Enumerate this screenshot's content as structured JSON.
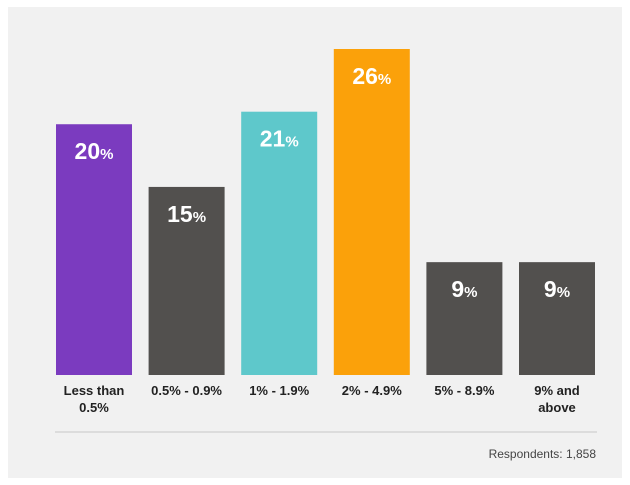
{
  "chart_data": {
    "type": "bar",
    "categories": [
      "Less than 0.5%",
      "0.5% - 0.9%",
      "1% - 1.9%",
      "2% - 4.9%",
      "5% - 8.9%",
      "9% and above"
    ],
    "category_lines": [
      [
        "Less than",
        "0.5%"
      ],
      [
        "0.5% - 0.9%"
      ],
      [
        "1% - 1.9%"
      ],
      [
        "2% - 4.9%"
      ],
      [
        "5% - 8.9%"
      ],
      [
        "9% and",
        "above"
      ]
    ],
    "values": [
      20,
      15,
      21,
      26,
      9,
      9
    ],
    "value_labels": [
      "20",
      "15",
      "21",
      "26",
      "9",
      "9"
    ],
    "value_suffix": "%",
    "colors": [
      "#7b3bbf",
      "#52504e",
      "#5ec8cb",
      "#fba10a",
      "#52504e",
      "#52504e"
    ],
    "ylim": [
      0,
      26
    ],
    "grid": false,
    "legend": "none"
  },
  "footnote": "Respondents: 1,858"
}
